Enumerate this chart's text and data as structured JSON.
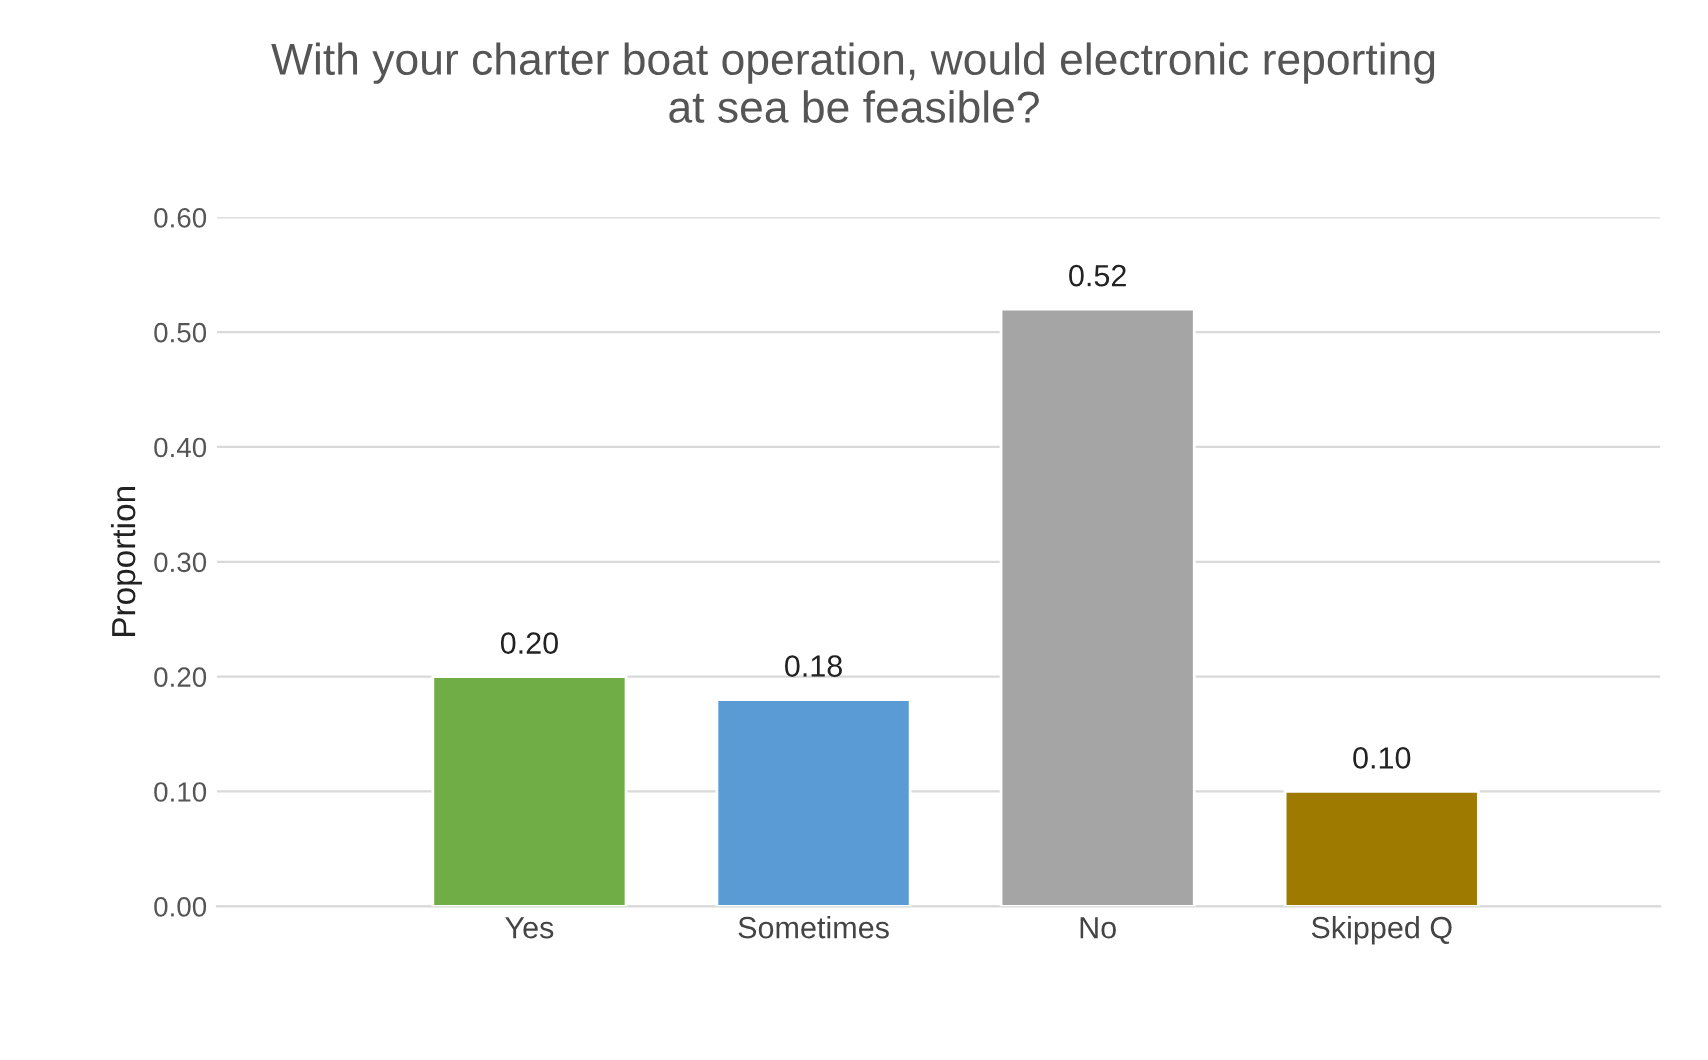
{
  "chart_data": {
    "type": "bar",
    "title": "With your charter boat operation, would electronic reporting\nat sea be feasible?",
    "ylabel": "Proportion",
    "categories": [
      "Yes",
      "Sometimes",
      "No",
      "Skipped Q"
    ],
    "values": [
      0.2,
      0.18,
      0.52,
      0.1
    ],
    "colors": [
      "#70ad47",
      "#5b9bd5",
      "#a5a5a5",
      "#9e7a00"
    ],
    "value_labels": [
      "0.20",
      "0.18",
      "0.52",
      "0.10"
    ],
    "ylim": [
      0,
      0.6
    ],
    "yticks": [
      {
        "value": 0,
        "label": "0.00"
      },
      {
        "value": 0.1,
        "label": "0.10"
      },
      {
        "value": 0.2,
        "label": "0.20"
      },
      {
        "value": 0.3,
        "label": "0.30"
      },
      {
        "value": 0.4,
        "label": "0.40"
      },
      {
        "value": 0.5,
        "label": "0.50"
      },
      {
        "value": 0.6,
        "label": "0.60"
      }
    ],
    "grid": "y"
  }
}
